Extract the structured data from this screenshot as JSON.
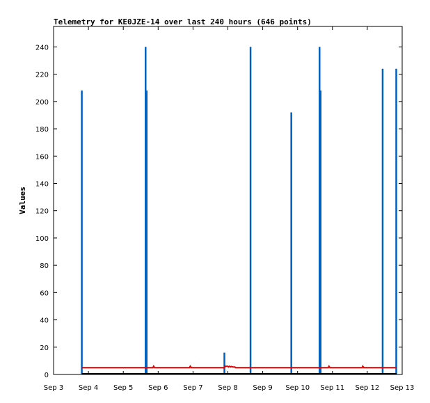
{
  "chart_data": {
    "type": "line",
    "title": "Telemetry for KE0JZE-14 over last 240 hours (646 points)",
    "xlabel": "",
    "ylabel": "Values",
    "x_tick_labels": [
      "Sep 3",
      "Sep 4",
      "Sep 5",
      "Sep 6",
      "Sep 7",
      "Sep 8",
      "Sep 9",
      "Sep 10",
      "Sep 11",
      "Sep 12",
      "Sep 13"
    ],
    "xlim": [
      3,
      13
    ],
    "ylim": [
      0,
      255
    ],
    "yticks": [
      0,
      20,
      40,
      60,
      80,
      100,
      120,
      140,
      160,
      180,
      200,
      220,
      240
    ],
    "grid": false,
    "series": [
      {
        "color": "#0060c0",
        "style": "impulse",
        "points": [
          {
            "x": 3.81,
            "y": 208
          },
          {
            "x": 5.64,
            "y": 240
          },
          {
            "x": 5.67,
            "y": 208
          },
          {
            "x": 7.9,
            "y": 16
          },
          {
            "x": 8.65,
            "y": 240
          },
          {
            "x": 9.82,
            "y": 192
          },
          {
            "x": 10.63,
            "y": 240
          },
          {
            "x": 10.66,
            "y": 208
          },
          {
            "x": 12.44,
            "y": 224
          },
          {
            "x": 12.83,
            "y": 224
          }
        ]
      },
      {
        "color": "#e00000",
        "style": "line",
        "x": [
          3.81,
          5.85,
          5.87,
          5.9,
          6.9,
          6.92,
          6.95,
          7.9,
          7.92,
          7.95,
          8.0,
          8.02,
          8.05,
          8.08,
          8.1,
          8.15,
          8.2,
          8.22,
          10.88,
          10.9,
          10.93,
          11.85,
          11.87,
          11.9,
          12.84
        ],
        "y": [
          5,
          5,
          6,
          5,
          5,
          6,
          5,
          5,
          6,
          6,
          6,
          5.5,
          6,
          5.5,
          5.8,
          5.5,
          5.5,
          5,
          5,
          6,
          5,
          5,
          6,
          5,
          5
        ]
      },
      {
        "color": "#000000",
        "style": "line",
        "x": [
          3.81,
          12.84
        ],
        "y": [
          0.5,
          0.5
        ]
      }
    ]
  }
}
